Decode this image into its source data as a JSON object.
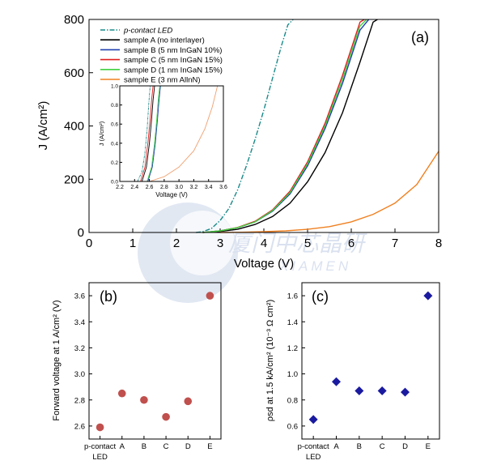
{
  "chart_data": [
    {
      "id": "a",
      "type": "line",
      "panel_label": "(a)",
      "xlabel": "Voltage (V)",
      "ylabel": "J (A/cm²)",
      "xlim": [
        0,
        8
      ],
      "ylim": [
        0,
        800
      ],
      "xticks": [
        "0",
        "1",
        "2",
        "3",
        "4",
        "5",
        "6",
        "7",
        "8"
      ],
      "yticks": [
        "0",
        "200",
        "400",
        "600",
        "800"
      ],
      "legend_position": "top-left",
      "series": [
        {
          "name": "p-contact LED",
          "color": "#1a8a8a",
          "dash": "dashdot",
          "x": [
            2.45,
            2.6,
            2.8,
            3.0,
            3.2,
            3.4,
            3.6,
            3.8,
            4.0,
            4.2,
            4.4,
            4.55,
            4.67
          ],
          "y": [
            0,
            3,
            15,
            45,
            90,
            160,
            250,
            350,
            460,
            580,
            700,
            780,
            800
          ]
        },
        {
          "name": "sample A (no interlayer)",
          "color": "#000000",
          "dash": "solid",
          "x": [
            2.6,
            3.0,
            3.4,
            3.8,
            4.2,
            4.6,
            5.0,
            5.4,
            5.8,
            6.2,
            6.5,
            6.6
          ],
          "y": [
            0,
            4,
            12,
            30,
            60,
            110,
            190,
            300,
            450,
            640,
            790,
            800
          ]
        },
        {
          "name": "sample B (5 nm InGaN 10%)",
          "color": "#2040b0",
          "dash": "solid",
          "x": [
            2.6,
            3.0,
            3.4,
            3.8,
            4.2,
            4.6,
            5.0,
            5.4,
            5.8,
            6.2,
            6.4
          ],
          "y": [
            0,
            6,
            18,
            40,
            80,
            145,
            250,
            390,
            560,
            760,
            800
          ]
        },
        {
          "name": "sample C (5 nm InGaN 15%)",
          "color": "#e02020",
          "dash": "solid",
          "x": [
            2.6,
            3.0,
            3.4,
            3.8,
            4.2,
            4.6,
            5.0,
            5.4,
            5.8,
            6.2,
            6.3
          ],
          "y": [
            0,
            6,
            19,
            42,
            85,
            155,
            265,
            410,
            590,
            790,
            800
          ]
        },
        {
          "name": "sample D (1 nm InGaN 15%)",
          "color": "#40d040",
          "dash": "solid",
          "x": [
            2.6,
            3.0,
            3.4,
            3.8,
            4.2,
            4.6,
            5.0,
            5.4,
            5.8,
            6.2,
            6.35
          ],
          "y": [
            0,
            6,
            18,
            40,
            82,
            150,
            258,
            400,
            575,
            775,
            800
          ]
        },
        {
          "name": "sample E (3 nm AllnN)",
          "color": "#f08020",
          "dash": "solid",
          "x": [
            3.0,
            3.5,
            4.0,
            4.5,
            5.0,
            5.5,
            6.0,
            6.5,
            7.0,
            7.5,
            8.0
          ],
          "y": [
            0,
            1,
            3,
            6,
            12,
            22,
            40,
            68,
            110,
            180,
            305
          ]
        }
      ],
      "inset": {
        "xlabel": "Voltage (V)",
        "ylabel": "J (A/cm²)",
        "xlim": [
          2.2,
          3.6
        ],
        "ylim": [
          0,
          1.0
        ],
        "xticks": [
          "2.2",
          "2.4",
          "2.6",
          "2.8",
          "3.0",
          "3.2",
          "3.4",
          "3.6"
        ],
        "yticks": [
          "0.0",
          "0.2",
          "0.4",
          "0.6",
          "0.8",
          "1.0"
        ],
        "series": [
          {
            "color": "#1a8a8a",
            "dash": "dashdot",
            "x": [
              2.44,
              2.5,
              2.54,
              2.57,
              2.59,
              2.61
            ],
            "y": [
              0,
              0.1,
              0.3,
              0.55,
              0.8,
              1.0
            ]
          },
          {
            "color": "#000000",
            "dash": "solid",
            "x": [
              2.5,
              2.56,
              2.6,
              2.63,
              2.65,
              2.67
            ],
            "y": [
              0,
              0.15,
              0.4,
              0.65,
              0.85,
              1.0
            ]
          },
          {
            "color": "#e02020",
            "dash": "solid",
            "x": [
              2.48,
              2.54,
              2.58,
              2.61,
              2.63,
              2.65
            ],
            "y": [
              0,
              0.15,
              0.4,
              0.65,
              0.85,
              1.0
            ]
          },
          {
            "color": "#2040b0",
            "dash": "solid",
            "x": [
              2.58,
              2.64,
              2.68,
              2.71,
              2.73,
              2.75
            ],
            "y": [
              0,
              0.15,
              0.4,
              0.65,
              0.85,
              1.0
            ]
          },
          {
            "color": "#40d040",
            "dash": "solid",
            "x": [
              2.57,
              2.63,
              2.67,
              2.7,
              2.72,
              2.74
            ],
            "y": [
              0,
              0.15,
              0.4,
              0.65,
              0.85,
              1.0
            ]
          },
          {
            "color": "#f0a070",
            "dash": "solid",
            "x": [
              2.6,
              2.8,
              3.0,
              3.2,
              3.35,
              3.45,
              3.52
            ],
            "y": [
              0,
              0.05,
              0.15,
              0.32,
              0.55,
              0.78,
              1.0
            ]
          }
        ]
      }
    },
    {
      "id": "b",
      "type": "scatter",
      "panel_label": "(b)",
      "ylabel": "Forward voltage at 1 A/cm² (V)",
      "categories": [
        "p-contact LED",
        "A",
        "B",
        "C",
        "D",
        "E"
      ],
      "values": [
        2.59,
        2.85,
        2.8,
        2.67,
        2.79,
        3.6
      ],
      "ylim": [
        2.5,
        3.7
      ],
      "yticks": [
        "2.6",
        "2.8",
        "3.0",
        "3.2",
        "3.4",
        "3.6"
      ],
      "marker": "circle",
      "color": "#c0504d"
    },
    {
      "id": "c",
      "type": "scatter",
      "panel_label": "(c)",
      "ylabel": "ρsd at 1.5 kA/cm² (10⁻³ Ω cm²)",
      "categories": [
        "p-contact LED",
        "A",
        "B",
        "C",
        "D",
        "E"
      ],
      "values": [
        0.65,
        0.94,
        0.87,
        0.87,
        0.86,
        1.6
      ],
      "ylim": [
        0.5,
        1.7
      ],
      "yticks": [
        "0.6",
        "0.8",
        "1.0",
        "1.2",
        "1.4",
        "1.6"
      ],
      "marker": "diamond",
      "color": "#1a1aa0"
    }
  ],
  "watermark": {
    "text_cn": "厦门中芯晶研",
    "text_en": "XIAMEN"
  }
}
